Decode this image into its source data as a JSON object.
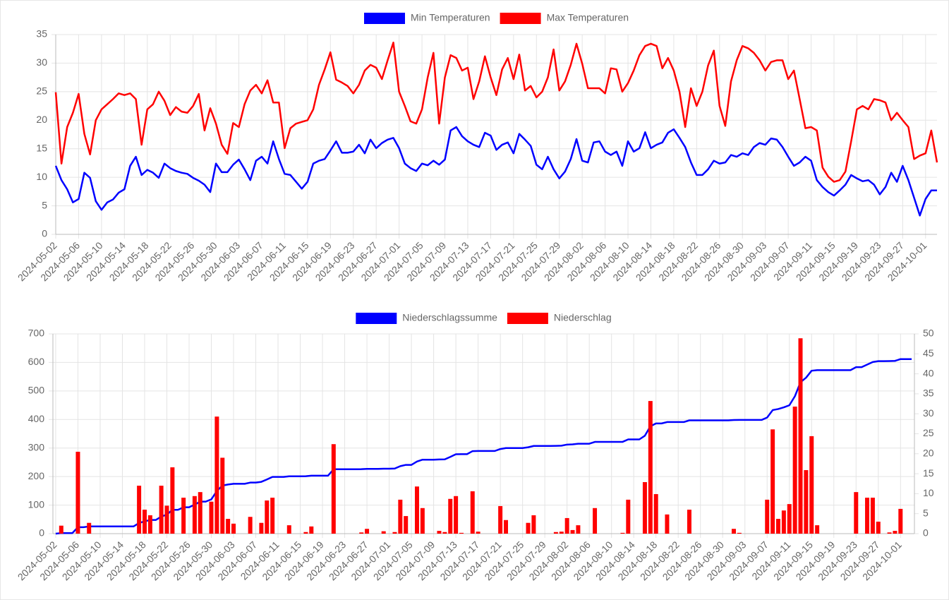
{
  "chart_data": [
    {
      "type": "line",
      "categories": [
        "2024-05-02",
        null,
        null,
        null,
        "2024-05-06",
        null,
        null,
        null,
        "2024-05-10",
        null,
        null,
        null,
        "2024-05-14",
        null,
        null,
        null,
        "2024-05-18",
        null,
        null,
        null,
        "2024-05-22",
        null,
        null,
        null,
        "2024-05-26",
        null,
        null,
        null,
        "2024-05-30",
        null,
        null,
        null,
        "2024-06-03",
        null,
        null,
        null,
        "2024-06-07",
        null,
        null,
        null,
        "2024-06-11",
        null,
        null,
        null,
        "2024-06-15",
        null,
        null,
        null,
        "2024-06-19",
        null,
        null,
        null,
        "2024-06-23",
        null,
        null,
        null,
        "2024-06-27",
        null,
        null,
        null,
        "2024-07-01",
        null,
        null,
        null,
        "2024-07-05",
        null,
        null,
        null,
        "2024-07-09",
        null,
        null,
        null,
        "2024-07-13",
        null,
        null,
        null,
        "2024-07-17",
        null,
        null,
        null,
        "2024-07-21",
        null,
        null,
        null,
        "2024-07-25",
        null,
        null,
        null,
        "2024-07-29",
        null,
        null,
        null,
        "2024-08-02",
        null,
        null,
        null,
        "2024-08-06",
        null,
        null,
        null,
        "2024-08-10",
        null,
        null,
        null,
        "2024-08-14",
        null,
        null,
        null,
        "2024-08-18",
        null,
        null,
        null,
        "2024-08-22",
        null,
        null,
        null,
        "2024-08-26",
        null,
        null,
        null,
        "2024-08-30",
        null,
        null,
        null,
        "2024-09-03",
        null,
        null,
        null,
        "2024-09-07",
        null,
        null,
        null,
        "2024-09-11",
        null,
        null,
        null,
        "2024-09-15",
        null,
        null,
        null,
        "2024-09-19",
        null,
        null,
        null,
        "2024-09-23",
        null,
        null,
        null,
        "2024-09-27",
        null,
        null,
        null,
        "2024-10-01",
        null,
        null
      ],
      "series": [
        {
          "name": "Min Temperaturen",
          "color": "#0000ff",
          "values": [
            12,
            9.5,
            7.9,
            5.6,
            6.2,
            10.8,
            9.9,
            5.8,
            4.3,
            5.6,
            6.1,
            7.3,
            7.9,
            12,
            13.6,
            10.4,
            11.3,
            10.8,
            9.9,
            12.4,
            11.6,
            11.1,
            10.8,
            10.6,
            9.9,
            9.4,
            8.7,
            7.4,
            12.4,
            10.9,
            10.9,
            12.2,
            13.1,
            11.4,
            9.5,
            12.9,
            13.6,
            12.4,
            16.3,
            13.2,
            10.6,
            10.4,
            9.2,
            8,
            9.2,
            12.4,
            12.9,
            13.2,
            14.7,
            16.3,
            14.3,
            14.3,
            14.5,
            15.7,
            14.2,
            16.6,
            15.1,
            16,
            16.6,
            16.9,
            15.1,
            12.4,
            11.6,
            11.1,
            12.4,
            12.1,
            12.9,
            12.2,
            13.1,
            18.2,
            18.8,
            17.2,
            16.3,
            15.7,
            15.3,
            17.8,
            17.3,
            14.8,
            15.7,
            16.1,
            14.2,
            17.6,
            16.6,
            15.5,
            12.2,
            11.4,
            13.6,
            11.4,
            9.8,
            11,
            13.2,
            16.7,
            12.9,
            12.6,
            16.1,
            16.3,
            14.5,
            13.9,
            14.5,
            12,
            16.3,
            14.5,
            15.1,
            17.9,
            15.1,
            15.7,
            16.1,
            17.8,
            18.4,
            16.9,
            15.3,
            12.6,
            10.4,
            10.4,
            11.4,
            12.9,
            12.4,
            12.6,
            13.9,
            13.6,
            14.2,
            13.9,
            15.3,
            16,
            15.7,
            16.8,
            16.6,
            15.3,
            13.6,
            12,
            12.6,
            13.6,
            12.9,
            9.5,
            8.3,
            7.4,
            6.8,
            7.7,
            8.7,
            10.4,
            9.8,
            9.3,
            9.5,
            8.7,
            7,
            8.3,
            10.8,
            9.2,
            12,
            9.5,
            6.4,
            3.3,
            6.2,
            7.7,
            7.7
          ]
        },
        {
          "name": "Max Temperaturen",
          "color": "#ff0000",
          "values": [
            24.9,
            12.4,
            18.8,
            21.3,
            24.6,
            17.6,
            14,
            20,
            21.9,
            22.8,
            23.7,
            24.7,
            24.4,
            24.7,
            23.7,
            15.7,
            21.9,
            22.8,
            25,
            23.4,
            20.9,
            22.3,
            21.5,
            21.3,
            22.5,
            24.6,
            18.2,
            22.1,
            19.4,
            15.7,
            14.1,
            19.5,
            18.8,
            22.8,
            25.2,
            26.2,
            24.7,
            27,
            23.1,
            23.1,
            15.1,
            18.6,
            19.4,
            19.7,
            20,
            21.9,
            26.2,
            28.9,
            31.9,
            27.1,
            26.6,
            26,
            24.7,
            26.2,
            28.7,
            29.7,
            29.2,
            27.2,
            30.5,
            33.6,
            25,
            22.5,
            19.8,
            19.4,
            21.9,
            27.5,
            31.8,
            19.4,
            27.5,
            31.4,
            30.9,
            28.7,
            29.2,
            23.7,
            26.8,
            31.2,
            27.5,
            24.4,
            28.9,
            30.9,
            27.2,
            31.5,
            25.2,
            26,
            24,
            25,
            27.5,
            32.4,
            25.2,
            26.8,
            29.7,
            33.4,
            29.9,
            25.6,
            25.6,
            25.6,
            24.7,
            29.1,
            28.9,
            25,
            26.5,
            28.7,
            31.4,
            33,
            33.4,
            33,
            29.1,
            30.9,
            28.7,
            25,
            18.8,
            25.6,
            22.5,
            25,
            29.6,
            32.2,
            22.5,
            19,
            26.8,
            30.5,
            33,
            32.6,
            31.8,
            30.5,
            28.7,
            30.2,
            30.5,
            30.5,
            27.2,
            28.7,
            23.7,
            18.6,
            18.8,
            18.2,
            11.7,
            10.1,
            9.2,
            9.5,
            11,
            16.3,
            21.9,
            22.5,
            21.9,
            23.7,
            23.5,
            23.1,
            20,
            21.3,
            20,
            18.8,
            13.2,
            13.8,
            14.2,
            18.2,
            12.6
          ]
        }
      ],
      "ylim": [
        0,
        35
      ],
      "yticks": [
        0,
        5,
        10,
        15,
        20,
        25,
        30,
        35
      ],
      "grid": true
    },
    {
      "type": "bar",
      "categories": [
        "2024-05-02",
        null,
        null,
        null,
        "2024-05-06",
        null,
        null,
        null,
        "2024-05-10",
        null,
        null,
        null,
        "2024-05-14",
        null,
        null,
        null,
        "2024-05-18",
        null,
        null,
        null,
        "2024-05-22",
        null,
        null,
        null,
        "2024-05-26",
        null,
        null,
        null,
        "2024-05-30",
        null,
        null,
        null,
        "2024-06-03",
        null,
        null,
        null,
        "2024-06-07",
        null,
        null,
        null,
        "2024-06-11",
        null,
        null,
        null,
        "2024-06-15",
        null,
        null,
        null,
        "2024-06-19",
        null,
        null,
        null,
        "2024-06-23",
        null,
        null,
        null,
        "2024-06-27",
        null,
        null,
        null,
        "2024-07-01",
        null,
        null,
        null,
        "2024-07-05",
        null,
        null,
        null,
        "2024-07-09",
        null,
        null,
        null,
        "2024-07-13",
        null,
        null,
        null,
        "2024-07-17",
        null,
        null,
        null,
        "2024-07-21",
        null,
        null,
        null,
        "2024-07-25",
        null,
        null,
        null,
        "2024-07-29",
        null,
        null,
        null,
        "2024-08-02",
        null,
        null,
        null,
        "2024-08-06",
        null,
        null,
        null,
        "2024-08-10",
        null,
        null,
        null,
        "2024-08-14",
        null,
        null,
        null,
        "2024-08-18",
        null,
        null,
        null,
        "2024-08-22",
        null,
        null,
        null,
        "2024-08-26",
        null,
        null,
        null,
        "2024-08-30",
        null,
        null,
        null,
        "2024-09-03",
        null,
        null,
        null,
        "2024-09-07",
        null,
        null,
        null,
        "2024-09-11",
        null,
        null,
        null,
        "2024-09-15",
        null,
        null,
        null,
        "2024-09-19",
        null,
        null,
        null,
        "2024-09-23",
        null,
        null,
        null,
        "2024-09-27",
        null,
        null,
        null,
        "2024-10-01",
        null,
        null
      ],
      "series": [
        {
          "name": "Niederschlagssumme",
          "type": "line",
          "color": "#0000ff",
          "values": [
            0,
            2,
            2,
            2,
            22.5,
            22.5,
            25.2,
            25.2,
            25.2,
            25.2,
            25.2,
            25.2,
            25.2,
            25.2,
            25.2,
            37.2,
            43.2,
            47.8,
            47.8,
            59.8,
            66.8,
            83.4,
            83.4,
            92.4,
            92.4,
            101.8,
            112.2,
            112.2,
            120.2,
            149.5,
            168.5,
            172.2,
            174.7,
            174.7,
            174.7,
            178.9,
            178.9,
            181.6,
            189.9,
            198.9,
            198.9,
            198.9,
            201,
            201,
            201,
            201.4,
            203.2,
            203.2,
            203.2,
            203.2,
            225.6,
            225.6,
            225.6,
            225.6,
            225.6,
            225.9,
            227.1,
            227.1,
            227.1,
            227.7,
            227.7,
            228.1,
            236.6,
            241,
            241,
            252.8,
            259.2,
            259.2,
            259.2,
            259.9,
            260.3,
            269,
            278.4,
            278.6,
            278.6,
            289.2,
            289.7,
            289.7,
            289.7,
            289.7,
            296.6,
            300,
            300,
            300,
            300,
            302.7,
            307.3,
            307.3,
            307.3,
            307.3,
            307.7,
            308.2,
            312.1,
            313,
            315.1,
            315.1,
            315.1,
            321.5,
            321.5,
            321.5,
            321.5,
            321.5,
            321.7,
            330.2,
            330.2,
            330.2,
            343.1,
            376.3,
            386.2,
            386.2,
            391,
            391,
            391,
            391,
            397,
            397,
            397,
            397,
            397,
            397,
            397,
            397,
            398.2,
            398.4,
            398.4,
            398.4,
            398.4,
            398.4,
            406.9,
            433,
            436.7,
            442.5,
            449.9,
            481.7,
            530.6,
            546.5,
            570.9,
            573,
            573,
            573,
            573,
            573,
            573,
            573,
            583.4,
            583.4,
            592.4,
            601.4,
            604.4,
            604.4,
            604.7,
            605.4,
            611.6,
            611.6,
            611.6
          ]
        },
        {
          "name": "Niederschlag",
          "type": "bar",
          "axis": "y2",
          "color": "#ff0000",
          "values": [
            0,
            2,
            0,
            0,
            20.5,
            0,
            2.7,
            0,
            0,
            0,
            0,
            0,
            0,
            0,
            0,
            12,
            6,
            4.6,
            0,
            12,
            7,
            16.6,
            0,
            9,
            0,
            9.4,
            10.4,
            0,
            8,
            29.3,
            19,
            3.7,
            2.5,
            0,
            0,
            4.2,
            0,
            2.7,
            8.3,
            9,
            0,
            0,
            2.1,
            0,
            0,
            0.4,
            1.8,
            0,
            0,
            0,
            22.4,
            0,
            0,
            0,
            0,
            0.3,
            1.2,
            0,
            0,
            0.6,
            0,
            0.4,
            8.5,
            4.4,
            0,
            11.8,
            6.4,
            0,
            0,
            0.7,
            0.4,
            8.7,
            9.4,
            0.2,
            0,
            10.6,
            0.5,
            0,
            0,
            0,
            6.9,
            3.4,
            0,
            0,
            0,
            2.7,
            4.6,
            0,
            0,
            0,
            0.4,
            0.5,
            3.9,
            0.9,
            2.1,
            0,
            0,
            6.4,
            0,
            0,
            0,
            0,
            0.2,
            8.5,
            0,
            0,
            12.9,
            33.2,
            9.9,
            0,
            4.8,
            0,
            0,
            0,
            6,
            0,
            0,
            0,
            0,
            0,
            0,
            0,
            1.2,
            0.2,
            0,
            0,
            0,
            0,
            8.5,
            26.1,
            3.7,
            5.8,
            7.4,
            31.8,
            48.9,
            15.9,
            24.4,
            2.1,
            0,
            0,
            0,
            0,
            0,
            0,
            10.4,
            0,
            9,
            9,
            3,
            0,
            0.3,
            0.7,
            6.2,
            0,
            0
          ]
        }
      ],
      "ylim": [
        0,
        700
      ],
      "yticks": [
        0,
        100,
        200,
        300,
        400,
        500,
        600,
        700
      ],
      "y2lim": [
        0,
        50
      ],
      "y2ticks": [
        0,
        5,
        10,
        15,
        20,
        25,
        30,
        35,
        40,
        45,
        50
      ],
      "grid": true
    }
  ]
}
